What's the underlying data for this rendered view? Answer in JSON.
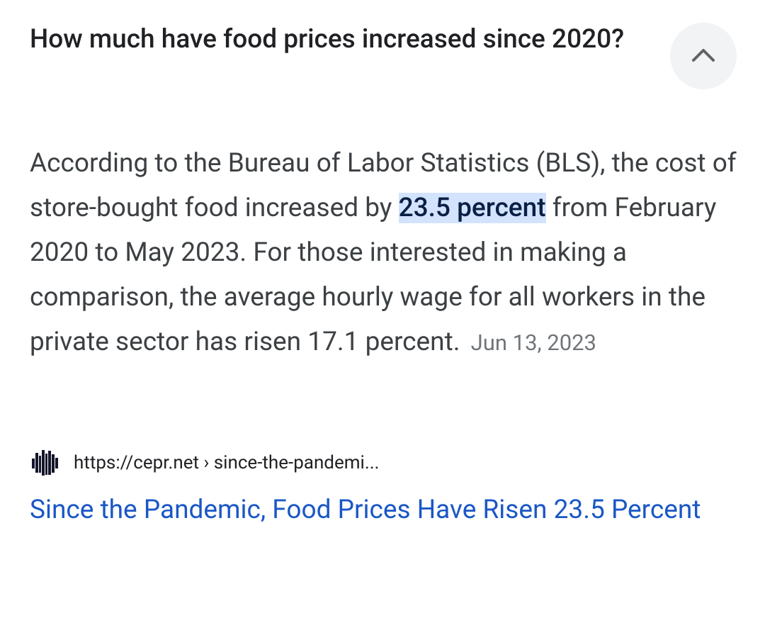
{
  "question": "How much have food prices increased since 2020?",
  "answer": {
    "before": "According to the Bureau of Labor Statistics (BLS), the cost of store-bought food increased by ",
    "highlight": "23.5 percent",
    "after": " from February 2020 to May 2023. For those interested in making a comparison, the average hourly wage for all workers in the private sector has risen 17.1 percent.",
    "date": "Jun 13, 2023"
  },
  "source": {
    "url": "https://cepr.net › since-the-pandemi...",
    "favicon_icon": "cepr-logo-icon",
    "title": "Since the Pandemic, Food Prices Have Risen 23.5 Percent"
  },
  "controls": {
    "collapse_icon": "chevron-up-icon"
  },
  "colors": {
    "highlight_bg": "#d3e3fd",
    "link": "#1a57c6",
    "button_bg": "#f1f3f4"
  }
}
